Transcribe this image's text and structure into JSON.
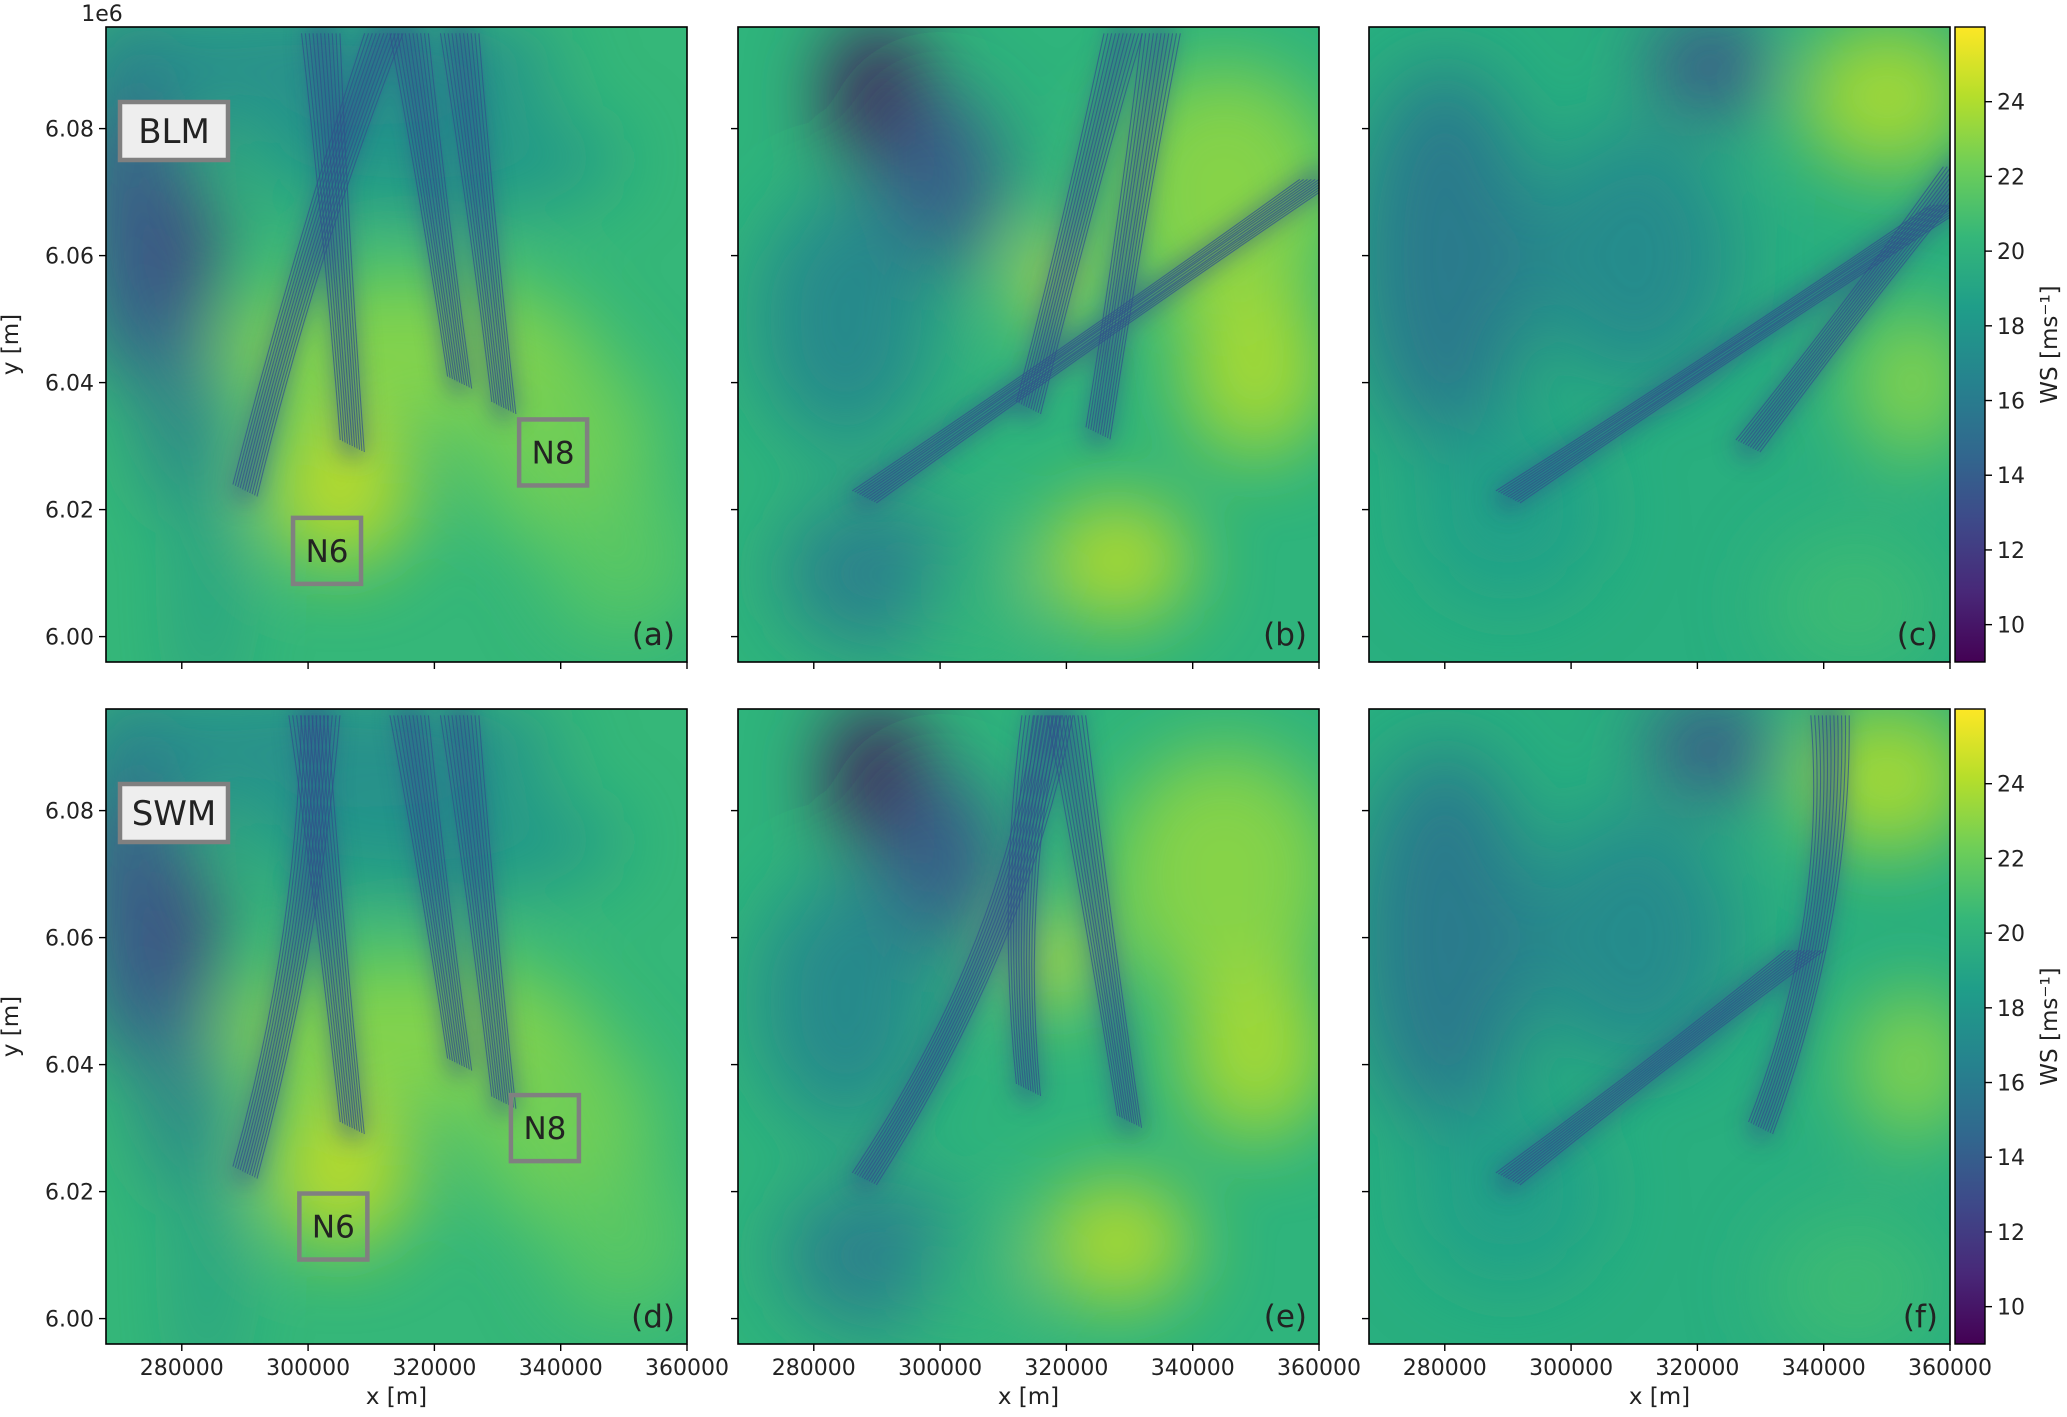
{
  "chart_data": {
    "type": "heatmap",
    "xlabel": "x [m]",
    "ylabel": "y [m]",
    "y_offset_label": "1e6",
    "xlim": [
      268000,
      360000
    ],
    "ylim": [
      5.996,
      6.096
    ],
    "x_ticks": [
      280000,
      300000,
      320000,
      340000,
      360000
    ],
    "x_tick_labels": [
      "280000",
      "300000",
      "320000",
      "340000",
      "360000"
    ],
    "y_ticks": [
      6.0,
      6.02,
      6.04,
      6.06,
      6.08
    ],
    "y_tick_labels": [
      "6.00",
      "6.02",
      "6.04",
      "6.06",
      "6.08"
    ],
    "colorbar": {
      "label": "WS [ms⁻¹]",
      "range": [
        9,
        26
      ],
      "ticks": [
        10,
        12,
        14,
        16,
        18,
        20,
        22,
        24
      ],
      "tick_labels": [
        "10",
        "12",
        "14",
        "16",
        "18",
        "20",
        "22",
        "24"
      ],
      "colormap": "viridis"
    },
    "rows": [
      {
        "model": "BLM",
        "panels": [
          {
            "tag": "(a)",
            "boxes": [
              {
                "label": "N6",
                "x": 303000,
                "y": 6.0135
              },
              {
                "label": "N8",
                "x": 338800,
                "y": 6.029
              }
            ]
          },
          {
            "tag": "(b)",
            "boxes": []
          },
          {
            "tag": "(c)",
            "boxes": []
          }
        ]
      },
      {
        "model": "SWM",
        "panels": [
          {
            "tag": "(d)",
            "boxes": [
              {
                "label": "N6",
                "x": 304000,
                "y": 6.0145
              },
              {
                "label": "N8",
                "x": 337500,
                "y": 6.03
              }
            ]
          },
          {
            "tag": "(e)",
            "boxes": []
          },
          {
            "tag": "(f)",
            "boxes": []
          }
        ]
      }
    ]
  },
  "colors": {
    "viridis": [
      "#440154",
      "#482878",
      "#3e4989",
      "#31688e",
      "#26828e",
      "#1f9e89",
      "#35b779",
      "#6ece58",
      "#b5de2b",
      "#fde725"
    ],
    "label_box_edge": "#808080",
    "model_box_fill": "#eeeeee"
  }
}
